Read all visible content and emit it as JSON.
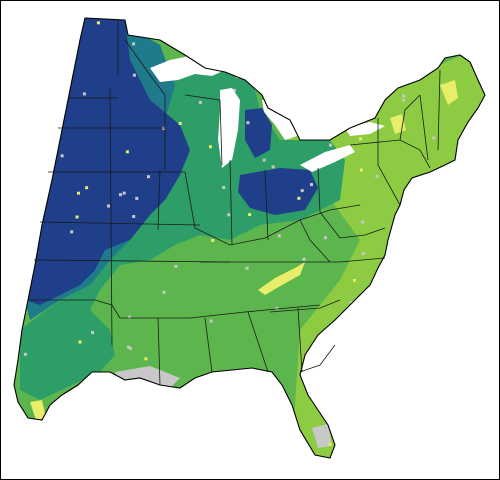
{
  "colors": {
    "background": "#ffffff",
    "frame": "#000000",
    "borders": "#1a1a1a",
    "class_very_high": "#1f3f8a",
    "class_high": "#1f7a8c",
    "class_medium_high": "#2e9e68",
    "class_medium": "#5cb64d",
    "class_medium_low": "#8ccb42",
    "class_low": "#e8ee6a",
    "no_data": "#c8c8c8"
  },
  "legend": []
}
